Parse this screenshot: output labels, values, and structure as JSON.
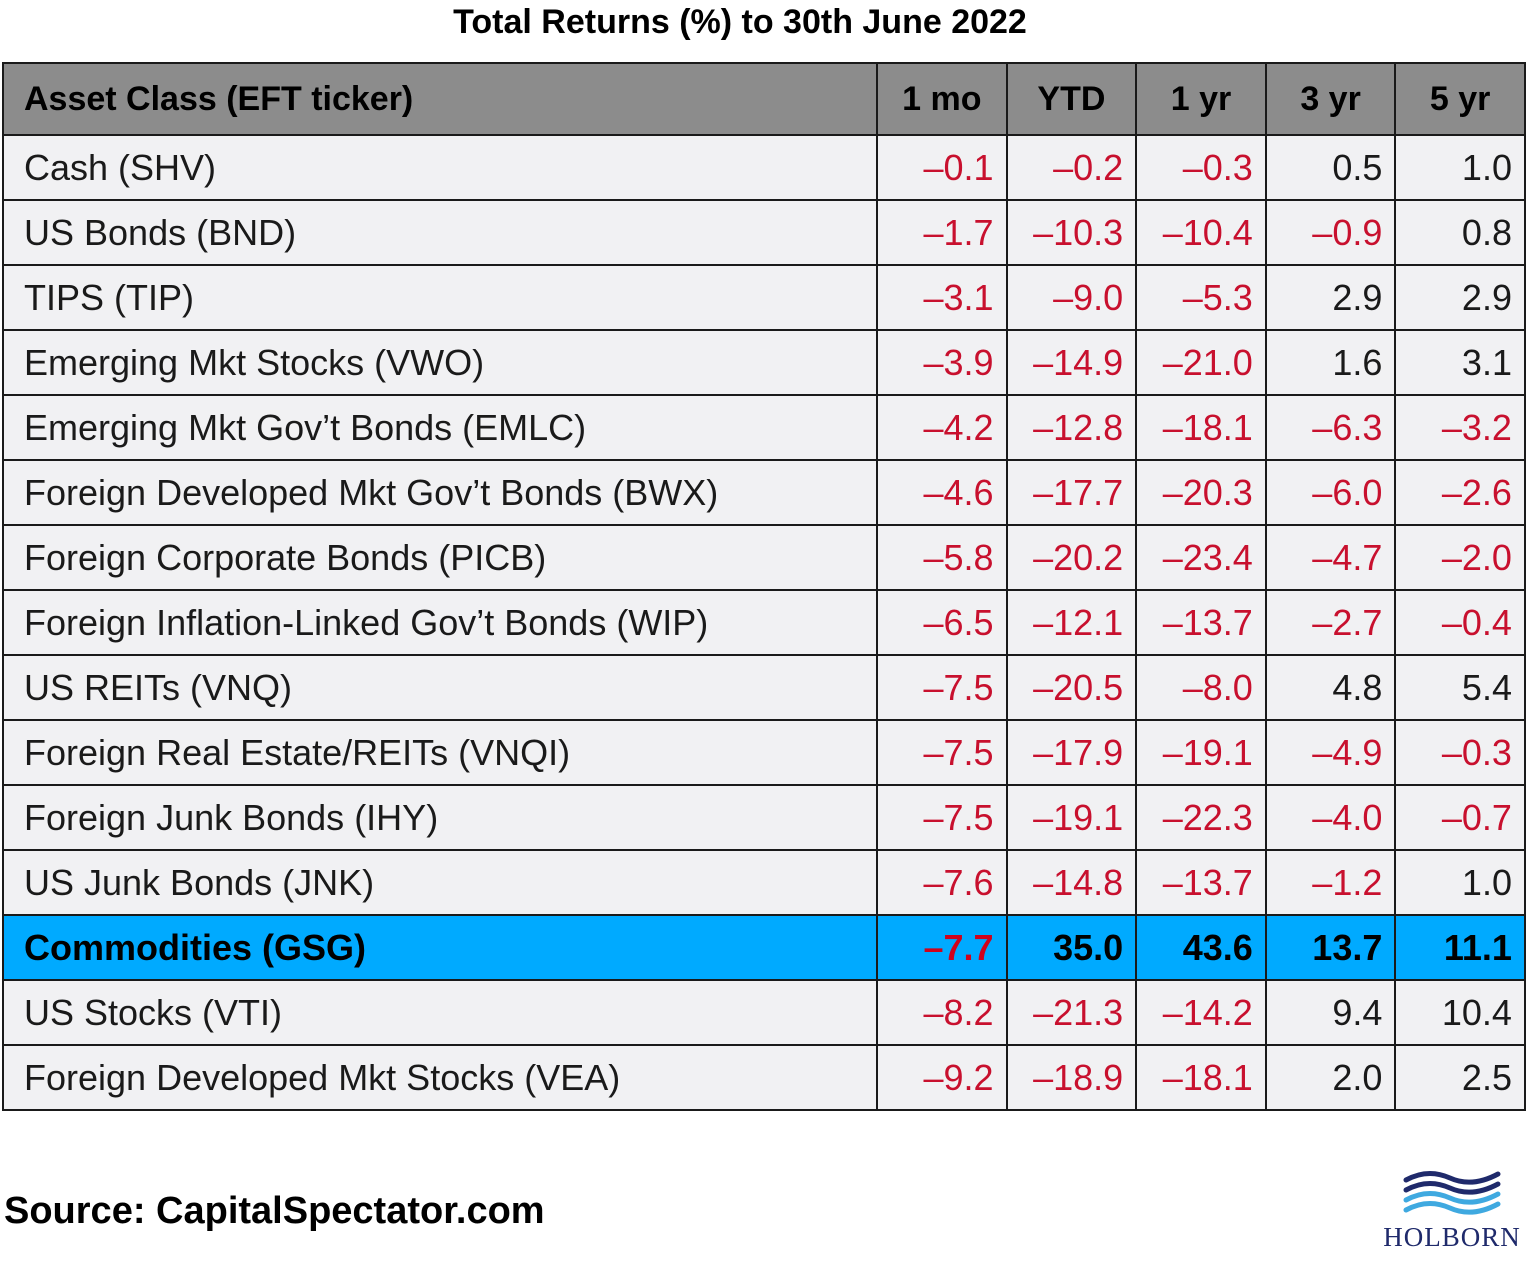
{
  "chart_data": {
    "type": "table",
    "title": "Total Returns (%) to 30th June 2022",
    "columns": [
      "Asset Class (EFT ticker)",
      "1 mo",
      "YTD",
      "1 yr",
      "3 yr",
      "5 yr"
    ],
    "highlight_row": "Commodities (GSG)",
    "rows": [
      {
        "name": "Cash (SHV)",
        "values": [
          "-0.1",
          "-0.2",
          "-0.3",
          "0.5",
          "1.0"
        ]
      },
      {
        "name": "US Bonds (BND)",
        "values": [
          "-1.7",
          "-10.3",
          "-10.4",
          "-0.9",
          "0.8"
        ]
      },
      {
        "name": "TIPS (TIP)",
        "values": [
          "-3.1",
          "-9.0",
          "-5.3",
          "2.9",
          "2.9"
        ]
      },
      {
        "name": "Emerging Mkt Stocks (VWO)",
        "values": [
          "-3.9",
          "-14.9",
          "-21.0",
          "1.6",
          "3.1"
        ]
      },
      {
        "name": "Emerging Mkt Gov’t Bonds (EMLC)",
        "values": [
          "-4.2",
          "-12.8",
          "-18.1",
          "-6.3",
          "-3.2"
        ]
      },
      {
        "name": "Foreign Developed Mkt Gov’t Bonds (BWX)",
        "values": [
          "-4.6",
          "-17.7",
          "-20.3",
          "-6.0",
          "-2.6"
        ]
      },
      {
        "name": "Foreign Corporate Bonds (PICB)",
        "values": [
          "-5.8",
          "-20.2",
          "-23.4",
          "-4.7",
          "-2.0"
        ]
      },
      {
        "name": "Foreign Inflation-Linked Gov’t Bonds (WIP)",
        "values": [
          "-6.5",
          "-12.1",
          "-13.7",
          "-2.7",
          "-0.4"
        ]
      },
      {
        "name": "US REITs (VNQ)",
        "values": [
          "-7.5",
          "-20.5",
          "-8.0",
          "4.8",
          "5.4"
        ]
      },
      {
        "name": "Foreign Real Estate/REITs (VNQI)",
        "values": [
          "-7.5",
          "-17.9",
          "-19.1",
          "-4.9",
          "-0.3"
        ]
      },
      {
        "name": "Foreign Junk Bonds (IHY)",
        "values": [
          "-7.5",
          "-19.1",
          "-22.3",
          "-4.0",
          "-0.7"
        ]
      },
      {
        "name": "US Junk Bonds (JNK)",
        "values": [
          "-7.6",
          "-14.8",
          "-13.7",
          "-1.2",
          "1.0"
        ]
      },
      {
        "name": "Commodities (GSG)",
        "values": [
          "-7.7",
          "35.0",
          "43.6",
          "13.7",
          "11.1"
        ]
      },
      {
        "name": "US Stocks (VTI)",
        "values": [
          "-8.2",
          "-21.3",
          "-14.2",
          "9.4",
          "10.4"
        ]
      },
      {
        "name": "Foreign Developed Mkt Stocks (VEA)",
        "values": [
          "-9.2",
          "-18.9",
          "-18.1",
          "2.0",
          "2.5"
        ]
      }
    ]
  },
  "source": "Source: CapitalSpectator.com",
  "logo": {
    "text": "HOLBORN",
    "icon": "waves-icon"
  },
  "colors": {
    "header_bg": "#8c8c8c",
    "row_bg": "#f1f1f3",
    "highlight_bg": "#00aaff",
    "negative": "#c8102e",
    "positive": "#1a1a1a",
    "logo_dark": "#1f2a6b",
    "logo_light": "#3fa9e0"
  }
}
